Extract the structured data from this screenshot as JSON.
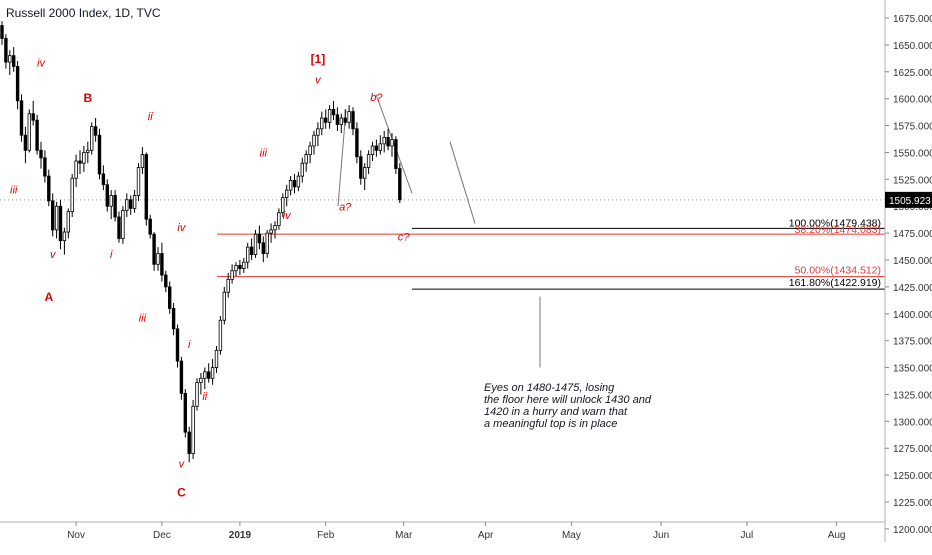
{
  "chart_title": "Russell 2000 Index, 1D, TVC",
  "colors": {
    "wave": "#e00000",
    "candle": "#000000",
    "fib_red": "#e53935",
    "fib_black": "#000000",
    "axis_text": "#333333",
    "price_badge": "#000000"
  },
  "chart_data": {
    "type": "candlestick",
    "title": "Russell 2000 Index, 1D, TVC",
    "ylim": [
      1200,
      1690
    ],
    "y_ticks": [
      "1675.000",
      "1650.000",
      "1625.000",
      "1600.000",
      "1575.000",
      "1550.000",
      "1525.000",
      "1500.000",
      "1475.000",
      "1450.000",
      "1425.000",
      "1400.000",
      "1375.000",
      "1350.000",
      "1325.000",
      "1300.000",
      "1275.000",
      "1250.000",
      "1225.000",
      "1200.000"
    ],
    "x_ticks": [
      {
        "label": "Nov",
        "bar": 19
      },
      {
        "label": "Dec",
        "bar": 41
      },
      {
        "label": "2019",
        "bar": 61
      },
      {
        "label": "Feb",
        "bar": 83
      },
      {
        "label": "Mar",
        "bar": 103
      },
      {
        "label": "Apr",
        "bar": 124
      },
      {
        "label": "May",
        "bar": 146
      },
      {
        "label": "Jun",
        "bar": 169
      },
      {
        "label": "Jul",
        "bar": 191
      },
      {
        "label": "Aug",
        "bar": 214
      }
    ],
    "last_price": "1505.923",
    "last_price_value": 1505.923,
    "candles": [
      [
        1668,
        1672,
        1650,
        1656
      ],
      [
        1656,
        1660,
        1628,
        1634
      ],
      [
        1634,
        1645,
        1622,
        1640
      ],
      [
        1640,
        1648,
        1625,
        1630
      ],
      [
        1630,
        1635,
        1590,
        1598
      ],
      [
        1598,
        1604,
        1560,
        1566
      ],
      [
        1566,
        1574,
        1540,
        1552
      ],
      [
        1552,
        1590,
        1550,
        1586
      ],
      [
        1586,
        1598,
        1575,
        1580
      ],
      [
        1580,
        1585,
        1548,
        1552
      ],
      [
        1552,
        1560,
        1535,
        1545
      ],
      [
        1545,
        1552,
        1522,
        1528
      ],
      [
        1528,
        1534,
        1500,
        1505
      ],
      [
        1505,
        1512,
        1472,
        1478
      ],
      [
        1478,
        1504,
        1470,
        1500
      ],
      [
        1500,
        1506,
        1460,
        1468
      ],
      [
        1468,
        1480,
        1455,
        1476
      ],
      [
        1476,
        1498,
        1470,
        1495
      ],
      [
        1495,
        1530,
        1490,
        1526
      ],
      [
        1526,
        1548,
        1518,
        1542
      ],
      [
        1542,
        1552,
        1530,
        1540
      ],
      [
        1540,
        1556,
        1532,
        1550
      ],
      [
        1550,
        1560,
        1540,
        1552
      ],
      [
        1552,
        1578,
        1548,
        1574
      ],
      [
        1574,
        1582,
        1560,
        1566
      ],
      [
        1566,
        1572,
        1525,
        1530
      ],
      [
        1530,
        1538,
        1515,
        1520
      ],
      [
        1520,
        1525,
        1495,
        1500
      ],
      [
        1500,
        1515,
        1488,
        1510
      ],
      [
        1510,
        1515,
        1486,
        1490
      ],
      [
        1490,
        1495,
        1466,
        1470
      ],
      [
        1470,
        1500,
        1465,
        1496
      ],
      [
        1496,
        1512,
        1490,
        1506
      ],
      [
        1506,
        1510,
        1492,
        1498
      ],
      [
        1498,
        1515,
        1494,
        1510
      ],
      [
        1510,
        1540,
        1505,
        1536
      ],
      [
        1536,
        1555,
        1530,
        1548
      ],
      [
        1548,
        1550,
        1482,
        1488
      ],
      [
        1488,
        1492,
        1470,
        1474
      ],
      [
        1474,
        1476,
        1440,
        1446
      ],
      [
        1446,
        1462,
        1440,
        1456
      ],
      [
        1456,
        1466,
        1430,
        1436
      ],
      [
        1436,
        1440,
        1420,
        1425
      ],
      [
        1425,
        1430,
        1400,
        1405
      ],
      [
        1405,
        1410,
        1380,
        1386
      ],
      [
        1386,
        1390,
        1350,
        1356
      ],
      [
        1356,
        1360,
        1320,
        1326
      ],
      [
        1326,
        1330,
        1285,
        1290
      ],
      [
        1290,
        1295,
        1262,
        1270
      ],
      [
        1270,
        1320,
        1265,
        1314
      ],
      [
        1314,
        1340,
        1310,
        1336
      ],
      [
        1336,
        1345,
        1325,
        1340
      ],
      [
        1340,
        1350,
        1330,
        1346
      ],
      [
        1346,
        1354,
        1336,
        1340
      ],
      [
        1340,
        1358,
        1334,
        1350
      ],
      [
        1350,
        1370,
        1345,
        1366
      ],
      [
        1366,
        1398,
        1362,
        1394
      ],
      [
        1394,
        1425,
        1390,
        1420
      ],
      [
        1420,
        1438,
        1415,
        1432
      ],
      [
        1432,
        1446,
        1428,
        1440
      ],
      [
        1440,
        1448,
        1435,
        1445
      ],
      [
        1445,
        1450,
        1436,
        1442
      ],
      [
        1442,
        1452,
        1438,
        1448
      ],
      [
        1448,
        1466,
        1442,
        1462
      ],
      [
        1462,
        1470,
        1450,
        1455
      ],
      [
        1455,
        1478,
        1452,
        1474
      ],
      [
        1474,
        1482,
        1460,
        1466
      ],
      [
        1466,
        1472,
        1448,
        1456
      ],
      [
        1456,
        1478,
        1452,
        1475
      ],
      [
        1475,
        1484,
        1466,
        1478
      ],
      [
        1478,
        1486,
        1470,
        1482
      ],
      [
        1482,
        1498,
        1478,
        1494
      ],
      [
        1494,
        1512,
        1490,
        1508
      ],
      [
        1508,
        1520,
        1500,
        1515
      ],
      [
        1515,
        1528,
        1510,
        1524
      ],
      [
        1524,
        1530,
        1512,
        1518
      ],
      [
        1518,
        1532,
        1514,
        1528
      ],
      [
        1528,
        1545,
        1522,
        1540
      ],
      [
        1540,
        1552,
        1532,
        1548
      ],
      [
        1548,
        1560,
        1540,
        1556
      ],
      [
        1556,
        1570,
        1548,
        1566
      ],
      [
        1566,
        1578,
        1556,
        1572
      ],
      [
        1572,
        1588,
        1566,
        1582
      ],
      [
        1582,
        1590,
        1572,
        1578
      ],
      [
        1578,
        1594,
        1572,
        1590
      ],
      [
        1590,
        1598,
        1580,
        1585
      ],
      [
        1585,
        1592,
        1570,
        1576
      ],
      [
        1576,
        1586,
        1568,
        1582
      ],
      [
        1582,
        1590,
        1575,
        1578
      ],
      [
        1578,
        1594,
        1572,
        1588
      ],
      [
        1588,
        1592,
        1566,
        1572
      ],
      [
        1572,
        1578,
        1540,
        1546
      ],
      [
        1546,
        1552,
        1520,
        1526
      ],
      [
        1526,
        1540,
        1515,
        1536
      ],
      [
        1536,
        1552,
        1530,
        1548
      ],
      [
        1548,
        1560,
        1542,
        1556
      ],
      [
        1556,
        1562,
        1546,
        1552
      ],
      [
        1552,
        1566,
        1548,
        1558
      ],
      [
        1558,
        1570,
        1550,
        1564
      ],
      [
        1564,
        1572,
        1552,
        1556
      ],
      [
        1556,
        1568,
        1546,
        1562
      ],
      [
        1562,
        1565,
        1530,
        1535
      ],
      [
        1535,
        1540,
        1503,
        1506
      ]
    ],
    "fib_levels": [
      {
        "label": "100.00%(1479.438)",
        "value": 1479.438,
        "color": "black"
      },
      {
        "label": "38.20%(1474.083)",
        "value": 1474.083,
        "color": "red"
      },
      {
        "label": "50.00%(1434.512)",
        "value": 1434.512,
        "color": "red"
      },
      {
        "label": "161.80%(1422.919)",
        "value": 1422.919,
        "color": "black"
      }
    ],
    "wave_labels": [
      {
        "text": "iv",
        "bar": 10,
        "price": 1630,
        "bold": false
      },
      {
        "text": "B",
        "bar": 22,
        "price": 1597,
        "bold": true
      },
      {
        "text": "ii",
        "bar": 38,
        "price": 1580,
        "bold": false
      },
      {
        "text": "iii",
        "bar": 3,
        "price": 1512,
        "bold": false
      },
      {
        "text": "v",
        "bar": 13,
        "price": 1452,
        "bold": false
      },
      {
        "text": "i",
        "bar": 28,
        "price": 1452,
        "bold": false
      },
      {
        "text": "A",
        "bar": 12,
        "price": 1412,
        "bold": true
      },
      {
        "text": "iv",
        "bar": 46,
        "price": 1477,
        "bold": false
      },
      {
        "text": "iii",
        "bar": 36,
        "price": 1393,
        "bold": false
      },
      {
        "text": "i",
        "bar": 48,
        "price": 1368,
        "bold": false
      },
      {
        "text": "ii",
        "bar": 52,
        "price": 1320,
        "bold": false
      },
      {
        "text": "v",
        "bar": 46,
        "price": 1257,
        "bold": false
      },
      {
        "text": "C",
        "bar": 46,
        "price": 1230,
        "bold": true
      },
      {
        "text": "iii",
        "bar": 67,
        "price": 1546,
        "bold": false
      },
      {
        "text": "iv",
        "bar": 73,
        "price": 1488,
        "bold": false
      },
      {
        "text": "[1]",
        "bar": 81,
        "price": 1633,
        "bold": true
      },
      {
        "text": "v",
        "bar": 81,
        "price": 1614,
        "bold": false
      },
      {
        "text": "b?",
        "bar": 96,
        "price": 1598,
        "bold": false
      },
      {
        "text": "a?",
        "bar": 88,
        "price": 1496,
        "bold": false
      },
      {
        "text": "c?",
        "bar": 103,
        "price": 1468,
        "bold": false
      }
    ],
    "annotation": [
      "Eyes on 1480-1475, losing",
      "the floor here will unlock 1430 and",
      "1420 in a hurry and warn that",
      "a meaningful top is in place"
    ]
  }
}
